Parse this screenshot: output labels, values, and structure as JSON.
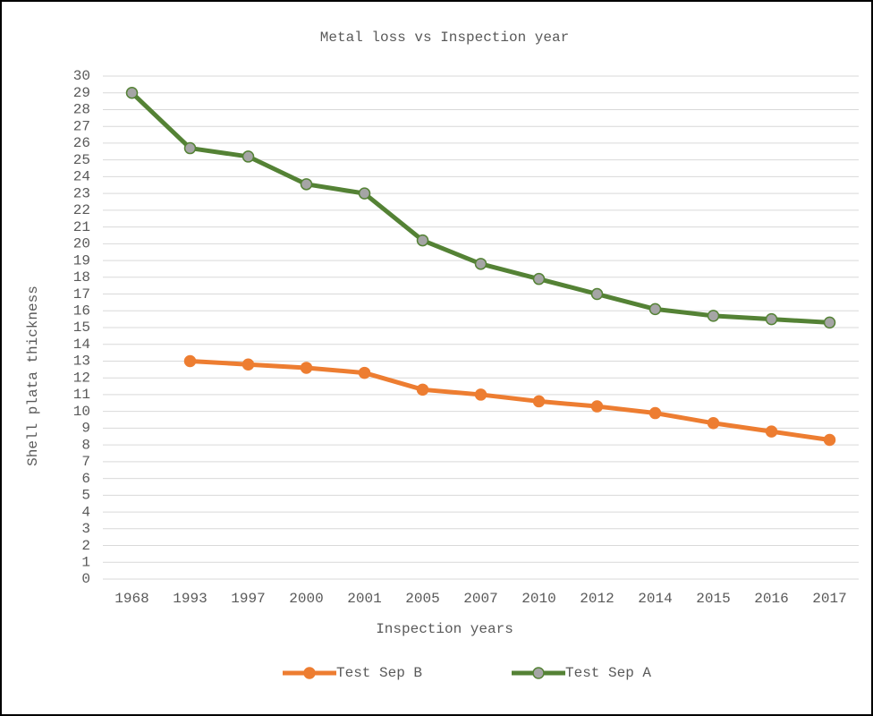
{
  "chart_data": {
    "type": "line",
    "title": "Metal loss vs Inspection year",
    "x_label": "Inspection years",
    "y_label": "Shell plata thickness",
    "categories": [
      "1968",
      "1993",
      "1997",
      "2000",
      "2001",
      "2005",
      "2007",
      "2010",
      "2012",
      "2014",
      "2015",
      "2016",
      "2017"
    ],
    "series": [
      {
        "name": "Test Sep B",
        "color": "#ed7d31",
        "marker_fill": "#ed7d31",
        "values": [
          null,
          13.0,
          12.8,
          12.6,
          12.3,
          11.3,
          11.0,
          10.6,
          10.3,
          9.9,
          9.3,
          8.8,
          8.3
        ]
      },
      {
        "name": "Test Sep A",
        "color": "#548235",
        "marker_fill": "#a5a5a5",
        "values": [
          29.0,
          25.7,
          25.2,
          23.55,
          23.0,
          20.2,
          18.8,
          17.9,
          17.0,
          16.1,
          15.7,
          15.5,
          15.3
        ]
      }
    ],
    "ylim": [
      0,
      30
    ],
    "yticks": [
      0,
      1,
      2,
      3,
      4,
      5,
      6,
      7,
      8,
      9,
      10,
      11,
      12,
      13,
      14,
      15,
      16,
      17,
      18,
      19,
      20,
      21,
      22,
      23,
      24,
      25,
      26,
      27,
      28,
      29,
      30
    ],
    "grid": true,
    "legend": "bottom"
  }
}
